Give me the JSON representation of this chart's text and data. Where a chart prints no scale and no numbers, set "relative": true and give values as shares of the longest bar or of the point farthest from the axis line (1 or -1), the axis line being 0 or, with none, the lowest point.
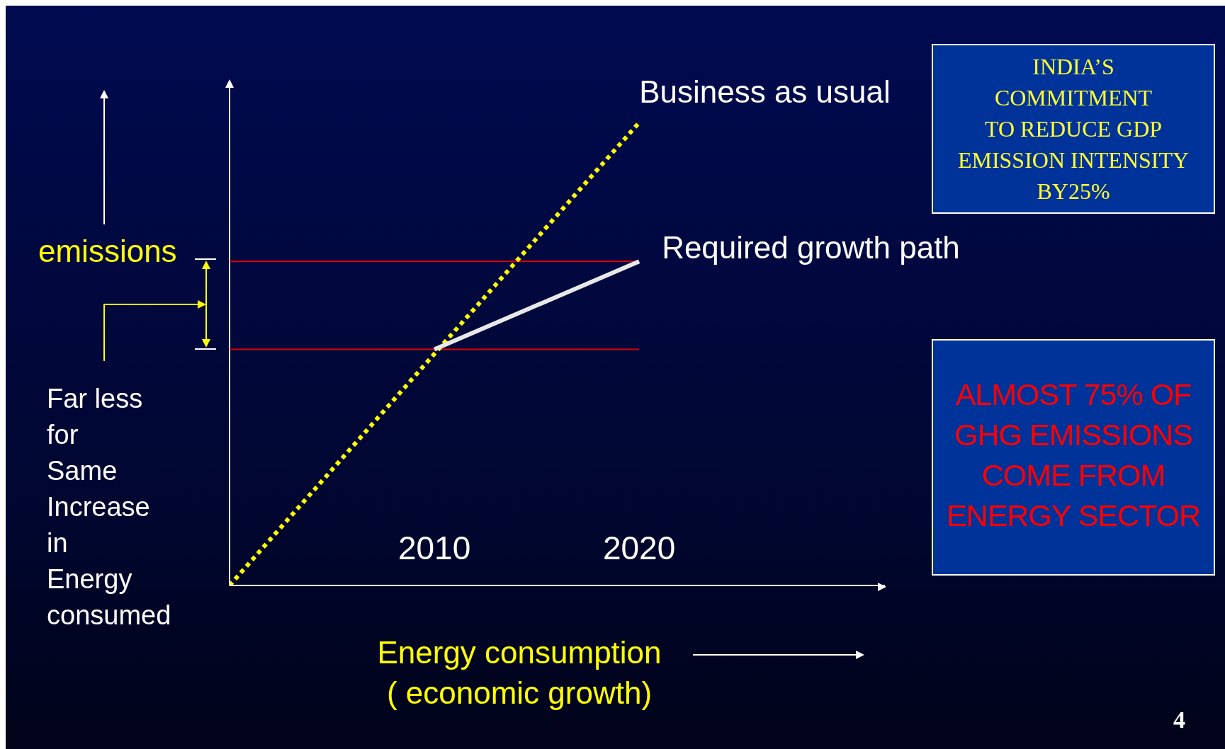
{
  "chart_data": {
    "type": "line",
    "relative": true,
    "xlabel": "Energy consumption\n( economic growth)",
    "xlim": [
      2000,
      2032
    ],
    "xticks": [
      2010,
      2020
    ],
    "series": [
      {
        "name": "Business as usual",
        "color": "#ffff00",
        "line_style": "dotted",
        "x": [
          2000,
          2020
        ],
        "values": [
          0,
          1
        ]
      },
      {
        "name": "Required growth path",
        "color": "#e8e8e8",
        "line_style": "solid",
        "x": [
          2010,
          2020
        ],
        "values": [
          0.51,
          0.7
        ]
      }
    ],
    "ref_lines": [
      {
        "axis": "y",
        "value": 0.51,
        "color": "#e00000"
      },
      {
        "axis": "y",
        "value": 0.7,
        "color": "#e00000"
      }
    ],
    "annotations": [
      "emissions",
      "Far less\nfor\nSame\nIncrease\nin\nEnergy\nconsumed",
      "INDIA’S\nCOMMITMENT\nTO REDUCE GDP\nEMISSION INTENSITY\nBY25%",
      "ALMOST 75% OF GHG EMISSIONS COME FROM ENERGY SECTOR",
      "4"
    ],
    "marker": "none"
  }
}
